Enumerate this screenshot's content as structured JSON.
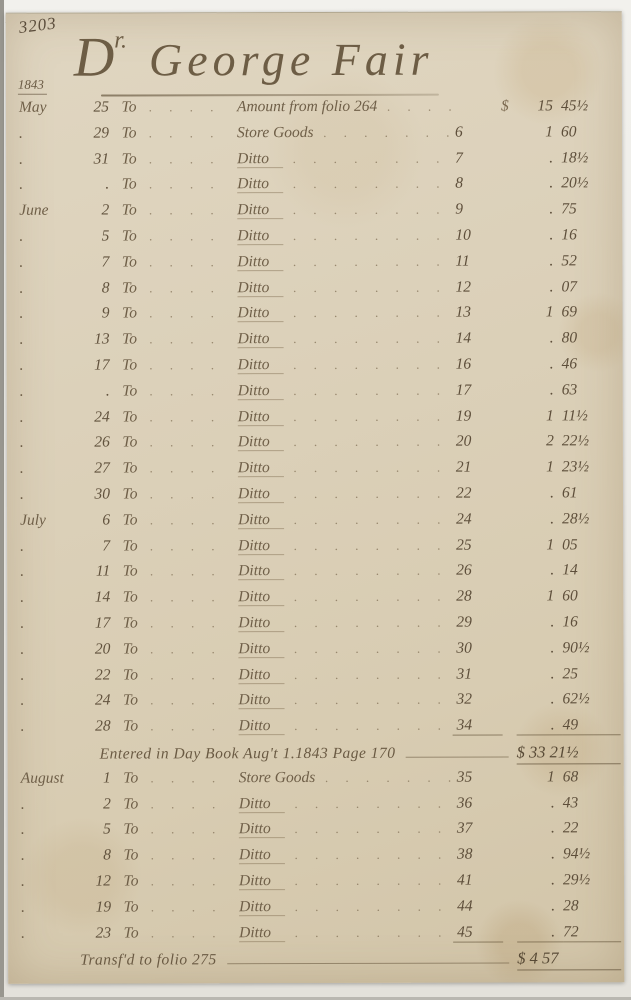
{
  "header": {
    "page_number": "3203",
    "year": "1843",
    "debit_letter": "D",
    "debit_superscript": "r.",
    "account_name": "George Fair"
  },
  "ledger": {
    "rows": [
      {
        "type": "entry",
        "month": "May",
        "day": "25",
        "to": "To",
        "desc": "Amount from folio 264",
        "folio": "",
        "prefix": "$",
        "dollars": "15",
        "cents": "45½",
        "underline": false,
        "long_desc": true
      },
      {
        "type": "entry",
        "month": ".",
        "day": "29",
        "to": "To",
        "desc": "Store Goods",
        "folio": "6",
        "prefix": "",
        "dollars": "1",
        "cents": "60",
        "underline": false
      },
      {
        "type": "entry",
        "month": ".",
        "day": "31",
        "to": "To",
        "desc": "Ditto",
        "folio": "7",
        "prefix": "",
        "dollars": ".",
        "cents": "18½",
        "underline": false,
        "ditto": true
      },
      {
        "type": "entry",
        "month": ".",
        "day": ".",
        "to": "To",
        "desc": "Ditto",
        "folio": "8",
        "prefix": "",
        "dollars": ".",
        "cents": "20½",
        "underline": false,
        "ditto": true
      },
      {
        "type": "entry",
        "month": "June",
        "day": "2",
        "to": "To",
        "desc": "Ditto",
        "folio": "9",
        "prefix": "",
        "dollars": ".",
        "cents": "75",
        "underline": false,
        "ditto": true
      },
      {
        "type": "entry",
        "month": ".",
        "day": "5",
        "to": "To",
        "desc": "Ditto",
        "folio": "10",
        "prefix": "",
        "dollars": ".",
        "cents": "16",
        "underline": false,
        "ditto": true
      },
      {
        "type": "entry",
        "month": ".",
        "day": "7",
        "to": "To",
        "desc": "Ditto",
        "folio": "11",
        "prefix": "",
        "dollars": ".",
        "cents": "52",
        "underline": false,
        "ditto": true
      },
      {
        "type": "entry",
        "month": ".",
        "day": "8",
        "to": "To",
        "desc": "Ditto",
        "folio": "12",
        "prefix": "",
        "dollars": ".",
        "cents": "07",
        "underline": false,
        "ditto": true
      },
      {
        "type": "entry",
        "month": ".",
        "day": "9",
        "to": "To",
        "desc": "Ditto",
        "folio": "13",
        "prefix": "",
        "dollars": "1",
        "cents": "69",
        "underline": false,
        "ditto": true
      },
      {
        "type": "entry",
        "month": ".",
        "day": "13",
        "to": "To",
        "desc": "Ditto",
        "folio": "14",
        "prefix": "",
        "dollars": ".",
        "cents": "80",
        "underline": false,
        "ditto": true
      },
      {
        "type": "entry",
        "month": ".",
        "day": "17",
        "to": "To",
        "desc": "Ditto",
        "folio": "16",
        "prefix": "",
        "dollars": ".",
        "cents": "46",
        "underline": false,
        "ditto": true
      },
      {
        "type": "entry",
        "month": ".",
        "day": ".",
        "to": "To",
        "desc": "Ditto",
        "folio": "17",
        "prefix": "",
        "dollars": ".",
        "cents": "63",
        "underline": false,
        "ditto": true
      },
      {
        "type": "entry",
        "month": ".",
        "day": "24",
        "to": "To",
        "desc": "Ditto",
        "folio": "19",
        "prefix": "",
        "dollars": "1",
        "cents": "11½",
        "underline": false,
        "ditto": true
      },
      {
        "type": "entry",
        "month": ".",
        "day": "26",
        "to": "To",
        "desc": "Ditto",
        "folio": "20",
        "prefix": "",
        "dollars": "2",
        "cents": "22½",
        "underline": false,
        "ditto": true
      },
      {
        "type": "entry",
        "month": ".",
        "day": "27",
        "to": "To",
        "desc": "Ditto",
        "folio": "21",
        "prefix": "",
        "dollars": "1",
        "cents": "23½",
        "underline": false,
        "ditto": true
      },
      {
        "type": "entry",
        "month": ".",
        "day": "30",
        "to": "To",
        "desc": "Ditto",
        "folio": "22",
        "prefix": "",
        "dollars": ".",
        "cents": "61",
        "underline": false,
        "ditto": true
      },
      {
        "type": "entry",
        "month": "July",
        "day": "6",
        "to": "To",
        "desc": "Ditto",
        "folio": "24",
        "prefix": "",
        "dollars": ".",
        "cents": "28½",
        "underline": false,
        "ditto": true
      },
      {
        "type": "entry",
        "month": ".",
        "day": "7",
        "to": "To",
        "desc": "Ditto",
        "folio": "25",
        "prefix": "",
        "dollars": "1",
        "cents": "05",
        "underline": false,
        "ditto": true
      },
      {
        "type": "entry",
        "month": ".",
        "day": "11",
        "to": "To",
        "desc": "Ditto",
        "folio": "26",
        "prefix": "",
        "dollars": ".",
        "cents": "14",
        "underline": false,
        "ditto": true
      },
      {
        "type": "entry",
        "month": ".",
        "day": "14",
        "to": "To",
        "desc": "Ditto",
        "folio": "28",
        "prefix": "",
        "dollars": "1",
        "cents": "60",
        "underline": false,
        "ditto": true
      },
      {
        "type": "entry",
        "month": ".",
        "day": "17",
        "to": "To",
        "desc": "Ditto",
        "folio": "29",
        "prefix": "",
        "dollars": ".",
        "cents": "16",
        "underline": false,
        "ditto": true
      },
      {
        "type": "entry",
        "month": ".",
        "day": "20",
        "to": "To",
        "desc": "Ditto",
        "folio": "30",
        "prefix": "",
        "dollars": ".",
        "cents": "90½",
        "underline": false,
        "ditto": true
      },
      {
        "type": "entry",
        "month": ".",
        "day": "22",
        "to": "To",
        "desc": "Ditto",
        "folio": "31",
        "prefix": "",
        "dollars": ".",
        "cents": "25",
        "underline": false,
        "ditto": true
      },
      {
        "type": "entry",
        "month": ".",
        "day": "24",
        "to": "To",
        "desc": "Ditto",
        "folio": "32",
        "prefix": "",
        "dollars": ".",
        "cents": "62½",
        "underline": false,
        "ditto": true
      },
      {
        "type": "entry",
        "month": ".",
        "day": "28",
        "to": "To",
        "desc": "Ditto",
        "folio": "34",
        "prefix": "",
        "dollars": ".",
        "cents": "49",
        "underline": true,
        "ditto": true
      },
      {
        "type": "summary",
        "text": "Entered in Day Book Aug't 1.1843 Page 170",
        "amount": "$ 33 21½"
      },
      {
        "type": "entry",
        "month": "August",
        "day": "1",
        "to": "To",
        "desc": "Store Goods",
        "folio": "35",
        "prefix": "",
        "dollars": "1",
        "cents": "68",
        "underline": false
      },
      {
        "type": "entry",
        "month": ".",
        "day": "2",
        "to": "To",
        "desc": "Ditto",
        "folio": "36",
        "prefix": "",
        "dollars": ".",
        "cents": "43",
        "underline": false,
        "ditto": true
      },
      {
        "type": "entry",
        "month": ".",
        "day": "5",
        "to": "To",
        "desc": "Ditto",
        "folio": "37",
        "prefix": "",
        "dollars": ".",
        "cents": "22",
        "underline": false,
        "ditto": true
      },
      {
        "type": "entry",
        "month": ".",
        "day": "8",
        "to": "To",
        "desc": "Ditto",
        "folio": "38",
        "prefix": "",
        "dollars": ".",
        "cents": "94½",
        "underline": false,
        "ditto": true
      },
      {
        "type": "entry",
        "month": ".",
        "day": "12",
        "to": "To",
        "desc": "Ditto",
        "folio": "41",
        "prefix": "",
        "dollars": ".",
        "cents": "29½",
        "underline": false,
        "ditto": true
      },
      {
        "type": "entry",
        "month": ".",
        "day": "19",
        "to": "To",
        "desc": "Ditto",
        "folio": "44",
        "prefix": "",
        "dollars": ".",
        "cents": "28",
        "underline": false,
        "ditto": true
      },
      {
        "type": "entry",
        "month": ".",
        "day": "23",
        "to": "To",
        "desc": "Ditto",
        "folio": "45",
        "prefix": "",
        "dollars": ".",
        "cents": "72",
        "underline": true,
        "ditto": true
      },
      {
        "type": "summary",
        "final": true,
        "text": "Transf'd to folio 275",
        "amount": "$ 4 57"
      }
    ]
  }
}
